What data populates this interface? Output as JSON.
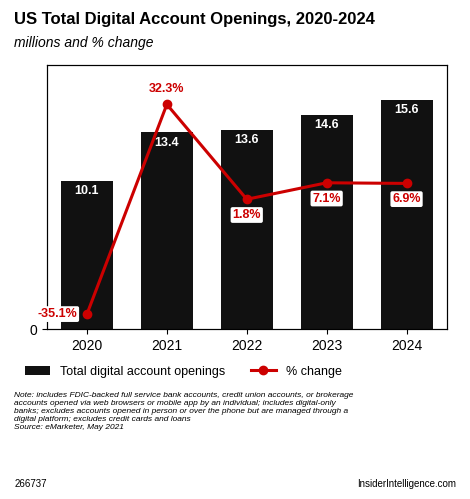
{
  "chart_data": {
    "type": "bar",
    "title": "US Total Digital Account Openings, 2020-2024",
    "subtitle": "millions and % change",
    "categories": [
      "2020",
      "2021",
      "2022",
      "2023",
      "2024"
    ],
    "series": [
      {
        "name": "Total digital account openings",
        "type": "bar",
        "color": "#111111",
        "values": [
          10.1,
          13.4,
          13.6,
          14.6,
          15.6
        ]
      },
      {
        "name": "% change",
        "type": "line",
        "color": "#cc0000",
        "axis": "y2",
        "marker": "o",
        "line_style": "solid",
        "values": [
          -35.1,
          32.3,
          1.8,
          7.1,
          6.9
        ],
        "value_labels": [
          "-35.1%",
          "32.3%",
          "1.8%",
          "7.1%",
          "6.9%"
        ]
      }
    ],
    "ylim": [
      0,
      18
    ],
    "yticks": [
      0
    ],
    "y2lim": [
      -40,
      45
    ],
    "y2ticks": [],
    "data_labels": true,
    "legend": "upper left",
    "annotations": [
      "Note: includes FDIC-backed full service bank accounts, credit union accounts, or brokerage\naccounts opened via web browsers or mobile app by an individual; includes digital-only\nbanks; excludes accounts opened in person or over the phone but are managed through a\ndigital platform; excludes credit cards and loans\nSource: eMarketer, May 2021",
      "266737",
      "InsiderIntelligence.com"
    ]
  }
}
